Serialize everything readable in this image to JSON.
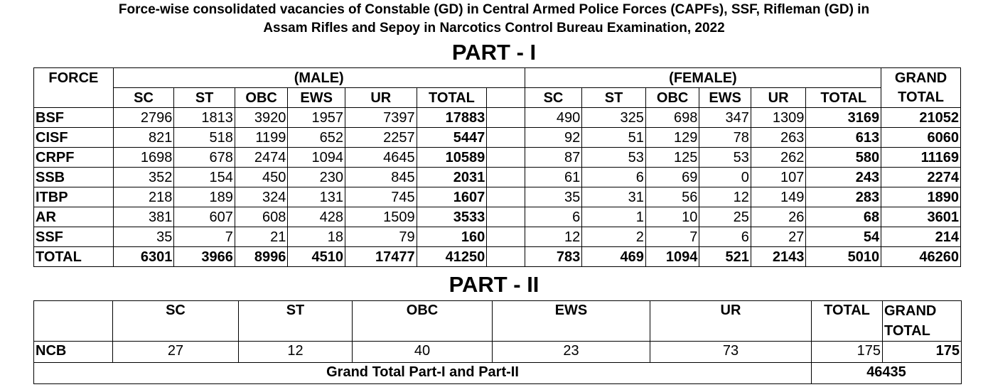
{
  "title": {
    "line1": "Force-wise consolidated vacancies of Constable (GD) in Central Armed Police Forces (CAPFs), SSF, Rifleman (GD) in",
    "line2": "Assam Rifles and Sepoy in Narcotics Control Bureau Examination, 2022"
  },
  "part1": {
    "heading": "PART - I",
    "force_label": "FORCE",
    "male_label": "(MALE)",
    "female_label": "(FEMALE)",
    "grand_label_1": "GRAND",
    "grand_label_2": "TOTAL",
    "columns": [
      "SC",
      "ST",
      "OBC",
      "EWS",
      "UR",
      "TOTAL"
    ],
    "rows": [
      {
        "force": "BSF",
        "male": [
          "2796",
          "1813",
          "3920",
          "1957",
          "7397",
          "17883"
        ],
        "female": [
          "490",
          "325",
          "698",
          "347",
          "1309",
          "3169"
        ],
        "grand": "21052"
      },
      {
        "force": "CISF",
        "male": [
          "821",
          "518",
          "1199",
          "652",
          "2257",
          "5447"
        ],
        "female": [
          "92",
          "51",
          "129",
          "78",
          "263",
          "613"
        ],
        "grand": "6060"
      },
      {
        "force": "CRPF",
        "male": [
          "1698",
          "678",
          "2474",
          "1094",
          "4645",
          "10589"
        ],
        "female": [
          "87",
          "53",
          "125",
          "53",
          "262",
          "580"
        ],
        "grand": "11169"
      },
      {
        "force": "SSB",
        "male": [
          "352",
          "154",
          "450",
          "230",
          "845",
          "2031"
        ],
        "female": [
          "61",
          "6",
          "69",
          "0",
          "107",
          "243"
        ],
        "grand": "2274"
      },
      {
        "force": "ITBP",
        "male": [
          "218",
          "189",
          "324",
          "131",
          "745",
          "1607"
        ],
        "female": [
          "35",
          "31",
          "56",
          "12",
          "149",
          "283"
        ],
        "grand": "1890"
      },
      {
        "force": "AR",
        "male": [
          "381",
          "607",
          "608",
          "428",
          "1509",
          "3533"
        ],
        "female": [
          "6",
          "1",
          "10",
          "25",
          "26",
          "68"
        ],
        "grand": "3601"
      },
      {
        "force": "SSF",
        "male": [
          "35",
          "7",
          "21",
          "18",
          "79",
          "160"
        ],
        "female": [
          "12",
          "2",
          "7",
          "6",
          "27",
          "54"
        ],
        "grand": "214"
      }
    ],
    "total": {
      "force": "TOTAL",
      "male": [
        "6301",
        "3966",
        "8996",
        "4510",
        "17477",
        "41250"
      ],
      "female": [
        "783",
        "469",
        "1094",
        "521",
        "2143",
        "5010"
      ],
      "grand": "46260"
    }
  },
  "part2": {
    "heading": "PART - II",
    "columns": [
      "SC",
      "ST",
      "OBC",
      "EWS",
      "UR",
      "TOTAL"
    ],
    "grand_label_1": "GRAND",
    "grand_label_2": "TOTAL",
    "row": {
      "force": "NCB",
      "values": [
        "27",
        "12",
        "40",
        "23",
        "73",
        "175"
      ],
      "grand": "175"
    },
    "grand_total_label": "Grand Total Part-I and Part-II",
    "grand_total_value": "46435"
  }
}
